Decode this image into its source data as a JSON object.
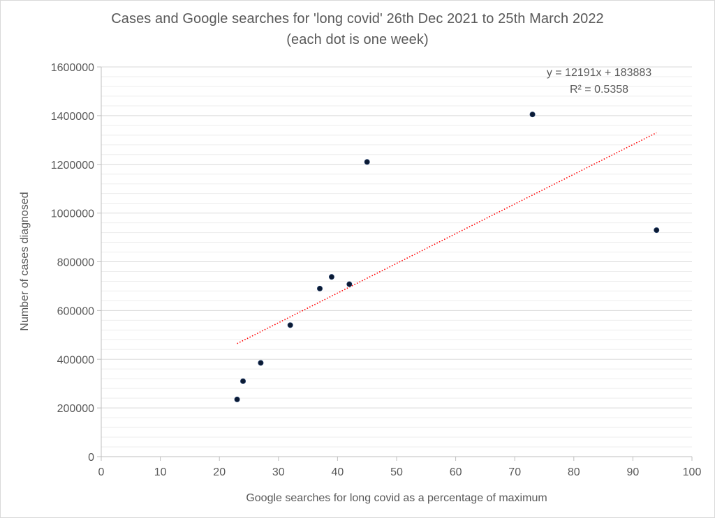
{
  "chart_data": {
    "type": "scatter",
    "title": "Cases and Google searches for 'long covid' 26th Dec 2021 to 25th March 2022",
    "subtitle": "(each dot is one week)",
    "xlabel": "Google searches for long covid as a percentage of maximum",
    "ylabel": "Number of cases diagnosed",
    "xlim": [
      0,
      100
    ],
    "ylim": [
      0,
      1600000
    ],
    "x_ticks": [
      0,
      10,
      20,
      30,
      40,
      50,
      60,
      70,
      80,
      90,
      100
    ],
    "y_ticks": [
      0,
      200000,
      400000,
      600000,
      800000,
      1000000,
      1200000,
      1400000,
      1600000
    ],
    "y_ticks_labels": [
      "0",
      "200000",
      "400000",
      "600000",
      "800000",
      "1000000",
      "1200000",
      "1400000",
      "1600000"
    ],
    "x_ticks_labels": [
      "0",
      "10",
      "20",
      "30",
      "40",
      "50",
      "60",
      "70",
      "80",
      "90",
      "100"
    ],
    "grid": true,
    "points": [
      {
        "x": 23,
        "y": 235000
      },
      {
        "x": 24,
        "y": 310000
      },
      {
        "x": 27,
        "y": 385000
      },
      {
        "x": 32,
        "y": 540000
      },
      {
        "x": 37,
        "y": 690000
      },
      {
        "x": 39,
        "y": 738000
      },
      {
        "x": 42,
        "y": 708000
      },
      {
        "x": 45,
        "y": 1210000
      },
      {
        "x": 73,
        "y": 1405000
      },
      {
        "x": 94,
        "y": 930000
      }
    ],
    "trendline": {
      "type": "linear",
      "slope": 12191,
      "intercept": 183883,
      "x_range": [
        23,
        94
      ],
      "color": "#ff0000",
      "equation_label": "y = 12191x + 183883",
      "r2_label": "R² = 0.5358"
    },
    "colors": {
      "point_fill": "#0b1a33",
      "grid": "#d9d9d9",
      "axis": "#bfbfbf",
      "text": "#595959"
    }
  }
}
